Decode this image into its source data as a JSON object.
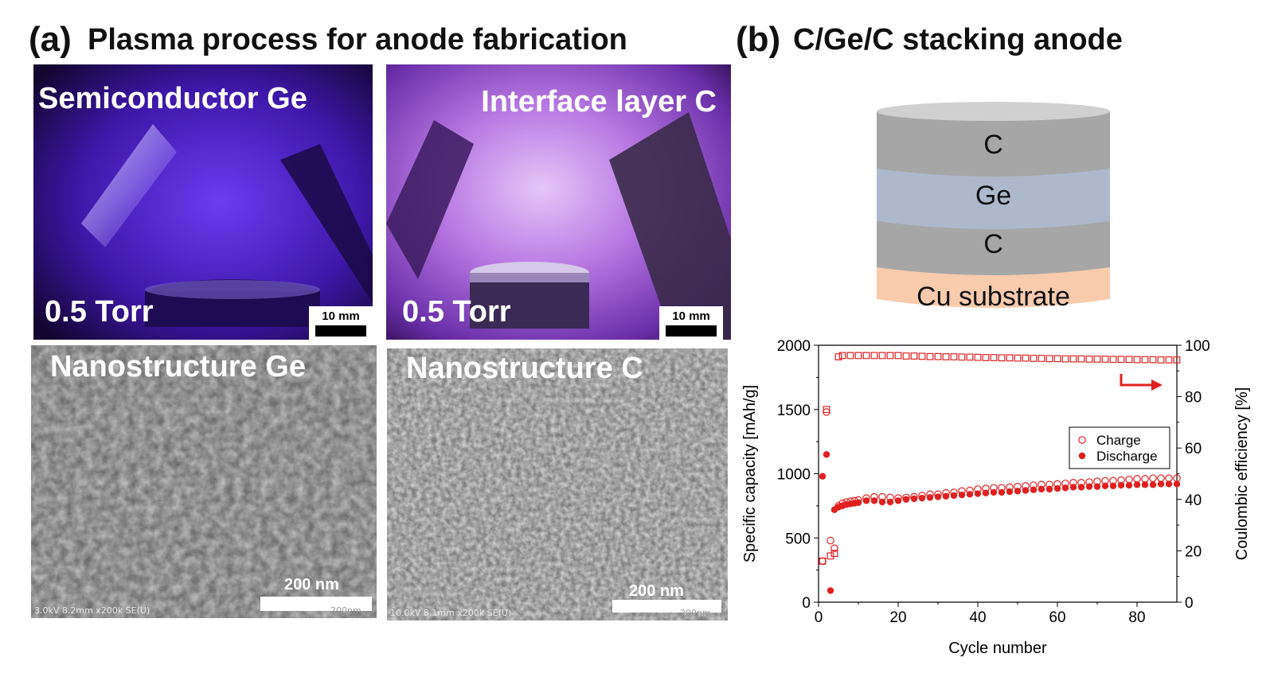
{
  "panel_a": {
    "letter": "(a)",
    "title": "Plasma process for anode fabrication",
    "photos": [
      {
        "label": "Semiconductor Ge",
        "pressure": "0.5 Torr",
        "scale": "10 mm"
      },
      {
        "label": "Interface layer C",
        "pressure": "0.5 Torr",
        "scale": "10 mm"
      }
    ],
    "sem": [
      {
        "label": "Nanostructure Ge",
        "scale": "200 nm",
        "footer": "3.0kV 8.2mm x200k SE(U)",
        "footer_right": "200nm"
      },
      {
        "label": "Nanostructure C",
        "scale": "200 nm",
        "footer": "10.0kV 8.1mm x200k SE(U)",
        "footer_right": "200nm"
      }
    ]
  },
  "panel_b": {
    "letter": "(b)",
    "title": "C/Ge/C stacking anode",
    "layers": [
      {
        "name": "C",
        "color": "#a6a6a6"
      },
      {
        "name": "Ge",
        "color": "#adb9ca"
      },
      {
        "name": "C",
        "color": "#a6a6a6"
      },
      {
        "name": "Cu substrate",
        "color": "#f8cbad"
      }
    ]
  },
  "colors": {
    "series": "#e02020",
    "plasma": "#5b2bd6"
  },
  "chart_data": {
    "type": "scatter",
    "xlabel": "Cycle number",
    "ylabel": "Specific capacity [mAh/g]",
    "y2label": "Coulombic efficiency [%]",
    "xlim": [
      0,
      90
    ],
    "ylim": [
      0,
      2000
    ],
    "y2lim": [
      0,
      100
    ],
    "xticks": [
      "0",
      "20",
      "40",
      "60",
      "80"
    ],
    "yticks": [
      "0",
      "500",
      "1000",
      "1500",
      "2000"
    ],
    "y2ticks": [
      "0",
      "20",
      "40",
      "60",
      "80",
      "100"
    ],
    "legend": [
      "Charge",
      "Discharge"
    ],
    "legend_position": "center-right",
    "series": [
      {
        "name": "Charge",
        "marker": "open-circle",
        "axis": "left",
        "x": [
          1,
          2,
          3,
          4,
          5,
          6,
          7,
          8,
          9,
          10,
          12,
          14,
          16,
          18,
          20,
          22,
          24,
          26,
          28,
          30,
          32,
          34,
          36,
          38,
          40,
          42,
          44,
          46,
          48,
          50,
          52,
          54,
          56,
          58,
          60,
          62,
          64,
          66,
          68,
          70,
          72,
          74,
          76,
          78,
          80,
          82,
          84,
          86,
          88,
          90
        ],
        "y": [
          320,
          1480,
          480,
          420,
          750,
          770,
          780,
          785,
          790,
          795,
          810,
          820,
          820,
          815,
          810,
          815,
          820,
          830,
          840,
          840,
          850,
          855,
          865,
          870,
          880,
          885,
          890,
          890,
          895,
          900,
          905,
          910,
          915,
          915,
          920,
          925,
          930,
          930,
          935,
          940,
          945,
          945,
          950,
          955,
          960,
          960,
          965,
          965,
          965,
          965
        ]
      },
      {
        "name": "Discharge",
        "marker": "filled-circle",
        "axis": "left",
        "x": [
          1,
          2,
          3,
          4,
          5,
          6,
          7,
          8,
          9,
          10,
          12,
          14,
          16,
          18,
          20,
          22,
          24,
          26,
          28,
          30,
          32,
          34,
          36,
          38,
          40,
          42,
          44,
          46,
          48,
          50,
          52,
          54,
          56,
          58,
          60,
          62,
          64,
          66,
          68,
          70,
          72,
          74,
          76,
          78,
          80,
          82,
          84,
          86,
          88,
          90
        ],
        "y": [
          980,
          1150,
          90,
          720,
          740,
          750,
          760,
          765,
          770,
          775,
          790,
          790,
          780,
          780,
          790,
          800,
          805,
          810,
          815,
          820,
          825,
          830,
          835,
          840,
          845,
          850,
          855,
          855,
          860,
          865,
          870,
          875,
          880,
          880,
          885,
          890,
          895,
          895,
          900,
          900,
          905,
          905,
          910,
          910,
          915,
          915,
          915,
          920,
          920,
          920
        ]
      },
      {
        "name": "Coulombic efficiency",
        "marker": "open-square",
        "axis": "right",
        "x": [
          1,
          2,
          3,
          4,
          5,
          6,
          8,
          10,
          12,
          14,
          16,
          18,
          20,
          22,
          24,
          26,
          28,
          30,
          32,
          34,
          36,
          38,
          40,
          42,
          44,
          46,
          48,
          50,
          52,
          54,
          56,
          58,
          60,
          62,
          64,
          66,
          68,
          70,
          72,
          74,
          76,
          78,
          80,
          82,
          84,
          86,
          88,
          90
        ],
        "y": [
          16,
          75,
          18,
          19,
          95.5,
          96,
          96,
          96,
          96,
          96,
          96,
          96,
          96,
          95.8,
          95.8,
          95.7,
          95.6,
          95.6,
          95.5,
          95.5,
          95.4,
          95.4,
          95.3,
          95.2,
          95.2,
          95.1,
          95.1,
          95,
          95,
          94.9,
          94.9,
          94.8,
          94.8,
          94.7,
          94.7,
          94.7,
          94.6,
          94.6,
          94.6,
          94.5,
          94.5,
          94.5,
          94.4,
          94.4,
          94.4,
          94.3,
          94.3,
          94.3
        ]
      }
    ]
  }
}
